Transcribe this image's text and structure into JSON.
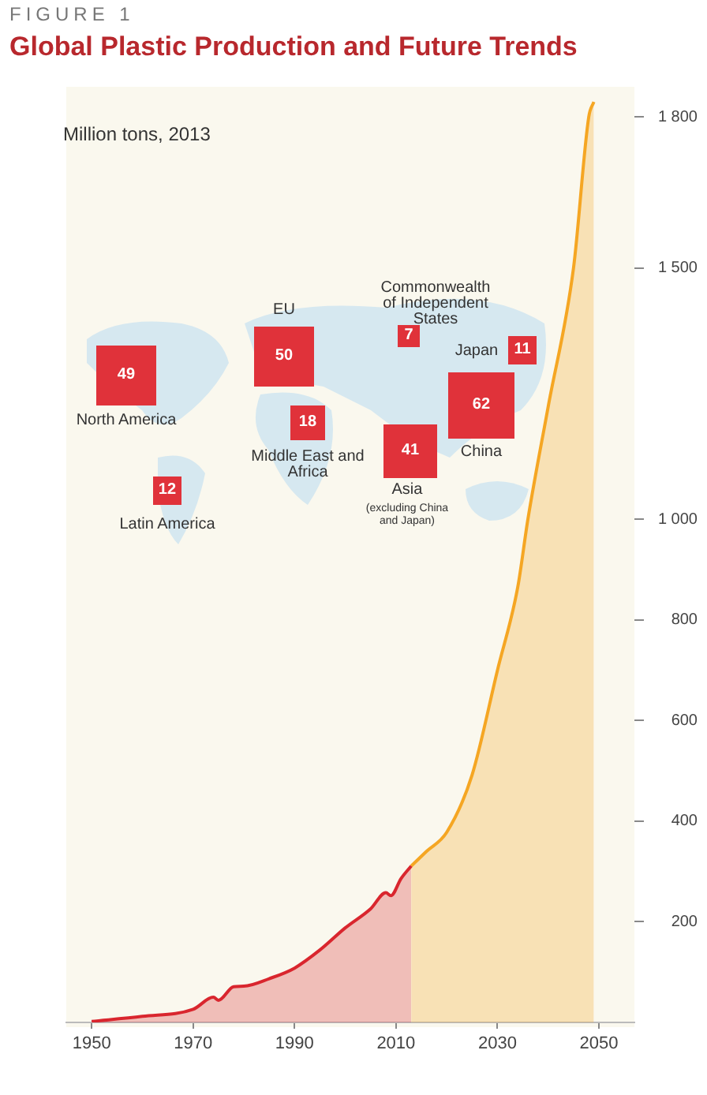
{
  "chart_data": {
    "type": "area",
    "title": "Global Plastic Production and Future Trends",
    "subtitle": "FIGURE 1",
    "annotations": [
      "Million tons, 2013",
      "North America",
      "49",
      "Latin America",
      "12",
      "EU",
      "50",
      "Middle East and Africa",
      "18",
      "Commonwealth of Independent States",
      "7",
      "Japan",
      "11",
      "China",
      "62",
      "Asia",
      "(excluding China and Japan)",
      "41"
    ],
    "series": [
      {
        "color": "#d9262e",
        "x": [
          1950,
          1960,
          1970,
          1974,
          1975,
          1978,
          1980,
          1985,
          1990,
          1995,
          2000,
          2005,
          2008,
          2009,
          2011,
          2013
        ],
        "values": [
          2,
          12,
          26,
          50,
          44,
          71,
          72,
          87,
          108,
          144,
          188,
          226,
          258,
          252,
          286,
          311
        ]
      },
      {
        "color": "#f5a623",
        "x": [
          2013,
          2016,
          2020,
          2025,
          2030,
          2034,
          2036,
          2040,
          2045,
          2048,
          2049
        ],
        "values": [
          311,
          340,
          378,
          492,
          700,
          865,
          1000,
          1224,
          1500,
          1800,
          1830
        ]
      }
    ],
    "xlim": [
      1945,
      2057
    ],
    "xticks": [
      1950,
      1970,
      1990,
      2010,
      2030,
      2050
    ],
    "ylim": [
      0,
      1860
    ],
    "yticks": [
      {
        "value": 200,
        "label": "200"
      },
      {
        "value": 400,
        "label": "400"
      },
      {
        "value": 600,
        "label": "600"
      },
      {
        "value": 800,
        "label": "800"
      },
      {
        "value": 1000,
        "label": "1 000"
      },
      {
        "value": 1500,
        "label": "1 500"
      },
      {
        "value": 1800,
        "label": "1 800"
      }
    ]
  }
}
